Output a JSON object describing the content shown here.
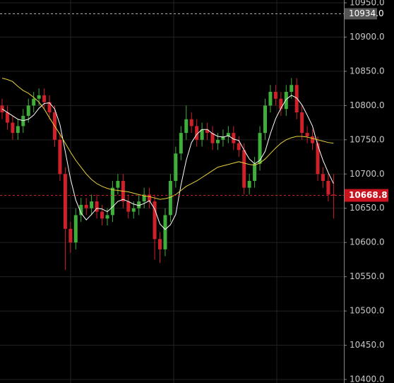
{
  "chart_data": {
    "type": "candlestick",
    "open": [
      10800,
      10790,
      10775,
      10760,
      10770,
      10785,
      10800,
      10810,
      10815,
      10805,
      10790,
      10750,
      10700,
      10620,
      10600,
      10640,
      10655,
      10650,
      10660,
      10645,
      10635,
      10640,
      10680,
      10690,
      10660,
      10645,
      10650,
      10660,
      10670,
      10660,
      10605,
      10590,
      10640,
      10690,
      10730,
      10760,
      10780,
      10770,
      10750,
      10765,
      10760,
      10745,
      10750,
      10755,
      10760,
      10745,
      10735,
      10680,
      10690,
      10715,
      10760,
      10800,
      10820,
      10810,
      10795,
      10820,
      10830,
      10790,
      10760,
      10755,
      10745,
      10700,
      10690,
      10670
    ],
    "high": [
      10810,
      10800,
      10785,
      10780,
      10795,
      10810,
      10820,
      10825,
      10825,
      10815,
      10800,
      10760,
      10710,
      10630,
      10650,
      10665,
      10665,
      10670,
      10670,
      10655,
      10650,
      10690,
      10700,
      10700,
      10670,
      10660,
      10670,
      10680,
      10680,
      10670,
      10615,
      10650,
      10700,
      10740,
      10770,
      10800,
      10790,
      10780,
      10775,
      10775,
      10770,
      10760,
      10765,
      10770,
      10770,
      10755,
      10745,
      10700,
      10725,
      10770,
      10810,
      10830,
      10830,
      10820,
      10830,
      10840,
      10840,
      10800,
      10770,
      10765,
      10755,
      10710,
      10700,
      10700
    ],
    "low": [
      10780,
      10765,
      10750,
      10750,
      10760,
      10775,
      10790,
      10800,
      10795,
      10780,
      10740,
      10690,
      10560,
      10585,
      10590,
      10630,
      10640,
      10640,
      10635,
      10625,
      10625,
      10630,
      10670,
      10650,
      10635,
      10635,
      10640,
      10650,
      10650,
      10575,
      10570,
      10580,
      10630,
      10680,
      10720,
      10750,
      10760,
      10740,
      10740,
      10750,
      10735,
      10735,
      10740,
      10745,
      10735,
      10725,
      10670,
      10670,
      10680,
      10705,
      10750,
      10790,
      10800,
      10785,
      10785,
      10810,
      10780,
      10750,
      10745,
      10735,
      10690,
      10680,
      10660,
      10635
    ],
    "close": [
      10790,
      10775,
      10760,
      10770,
      10785,
      10800,
      10810,
      10815,
      10805,
      10790,
      10750,
      10700,
      10620,
      10600,
      10640,
      10655,
      10650,
      10660,
      10645,
      10635,
      10640,
      10680,
      10690,
      10660,
      10645,
      10650,
      10660,
      10670,
      10660,
      10605,
      10590,
      10640,
      10690,
      10730,
      10760,
      10780,
      10770,
      10750,
      10765,
      10760,
      10745,
      10750,
      10755,
      10760,
      10745,
      10735,
      10680,
      10690,
      10715,
      10760,
      10800,
      10820,
      10810,
      10795,
      10820,
      10830,
      10790,
      10760,
      10755,
      10745,
      10700,
      10690,
      10670,
      10668.8
    ],
    "up_color": "#3fae3a",
    "down_color": "#d0202a",
    "series": [
      {
        "color": "#ffffff",
        "values": [
          10795,
          10790,
          10785,
          10780,
          10778,
          10780,
          10786,
          10796,
          10803,
          10804,
          10795,
          10772,
          10733,
          10693,
          10662,
          10643,
          10633,
          10641,
          10650,
          10649,
          10645,
          10652,
          10660,
          10663,
          10660,
          10656,
          10654,
          10657,
          10661,
          10649,
          10627,
          10619,
          10626,
          10641,
          10684,
          10720,
          10746,
          10758,
          10765,
          10765,
          10759,
          10755,
          10754,
          10756,
          10751,
          10749,
          10735,
          10722,
          10715,
          10720,
          10733,
          10759,
          10781,
          10796,
          10809,
          10815,
          10811,
          10801,
          10786,
          10770,
          10742,
          10720,
          10702,
          10686
        ]
      },
      {
        "color": "#e8d13a",
        "values": [
          10840,
          10838,
          10835,
          10828,
          10822,
          10818,
          10812,
          10805,
          10795,
          10782,
          10770,
          10758,
          10745,
          10732,
          10720,
          10710,
          10700,
          10692,
          10686,
          10682,
          10679,
          10677,
          10676,
          10675,
          10674,
          10672,
          10670,
          10668,
          10667,
          10665,
          10663,
          10664,
          10666,
          10670,
          10676,
          10682,
          10686,
          10690,
          10695,
          10700,
          10705,
          10710,
          10712,
          10714,
          10716,
          10718,
          10716,
          10714,
          10713,
          10716,
          10722,
          10730,
          10738,
          10745,
          10750,
          10753,
          10755,
          10755,
          10754,
          10752,
          10750,
          10748,
          10746,
          10745
        ]
      }
    ],
    "ylim": [
      10400,
      10950
    ],
    "yticks": [
      {
        "value": 10400,
        "label": "10400.0"
      },
      {
        "value": 10450,
        "label": "10450.0"
      },
      {
        "value": 10500,
        "label": "10500.0"
      },
      {
        "value": 10550,
        "label": "10550.0"
      },
      {
        "value": 10600,
        "label": "10600.0"
      },
      {
        "value": 10650,
        "label": "10650.0"
      },
      {
        "value": 10700,
        "label": "10700.0"
      },
      {
        "value": 10750,
        "label": "10750.0"
      },
      {
        "value": 10800,
        "label": "10800.0"
      },
      {
        "value": 10850,
        "label": "10850.0"
      },
      {
        "value": 10900,
        "label": "10900.0"
      },
      {
        "value": 10950,
        "label": "10950.0"
      }
    ],
    "reference_line": {
      "value": 10934,
      "label": "10934.0"
    },
    "last_price": {
      "value": 10668.8,
      "label": "10668.8"
    },
    "grid": true
  }
}
